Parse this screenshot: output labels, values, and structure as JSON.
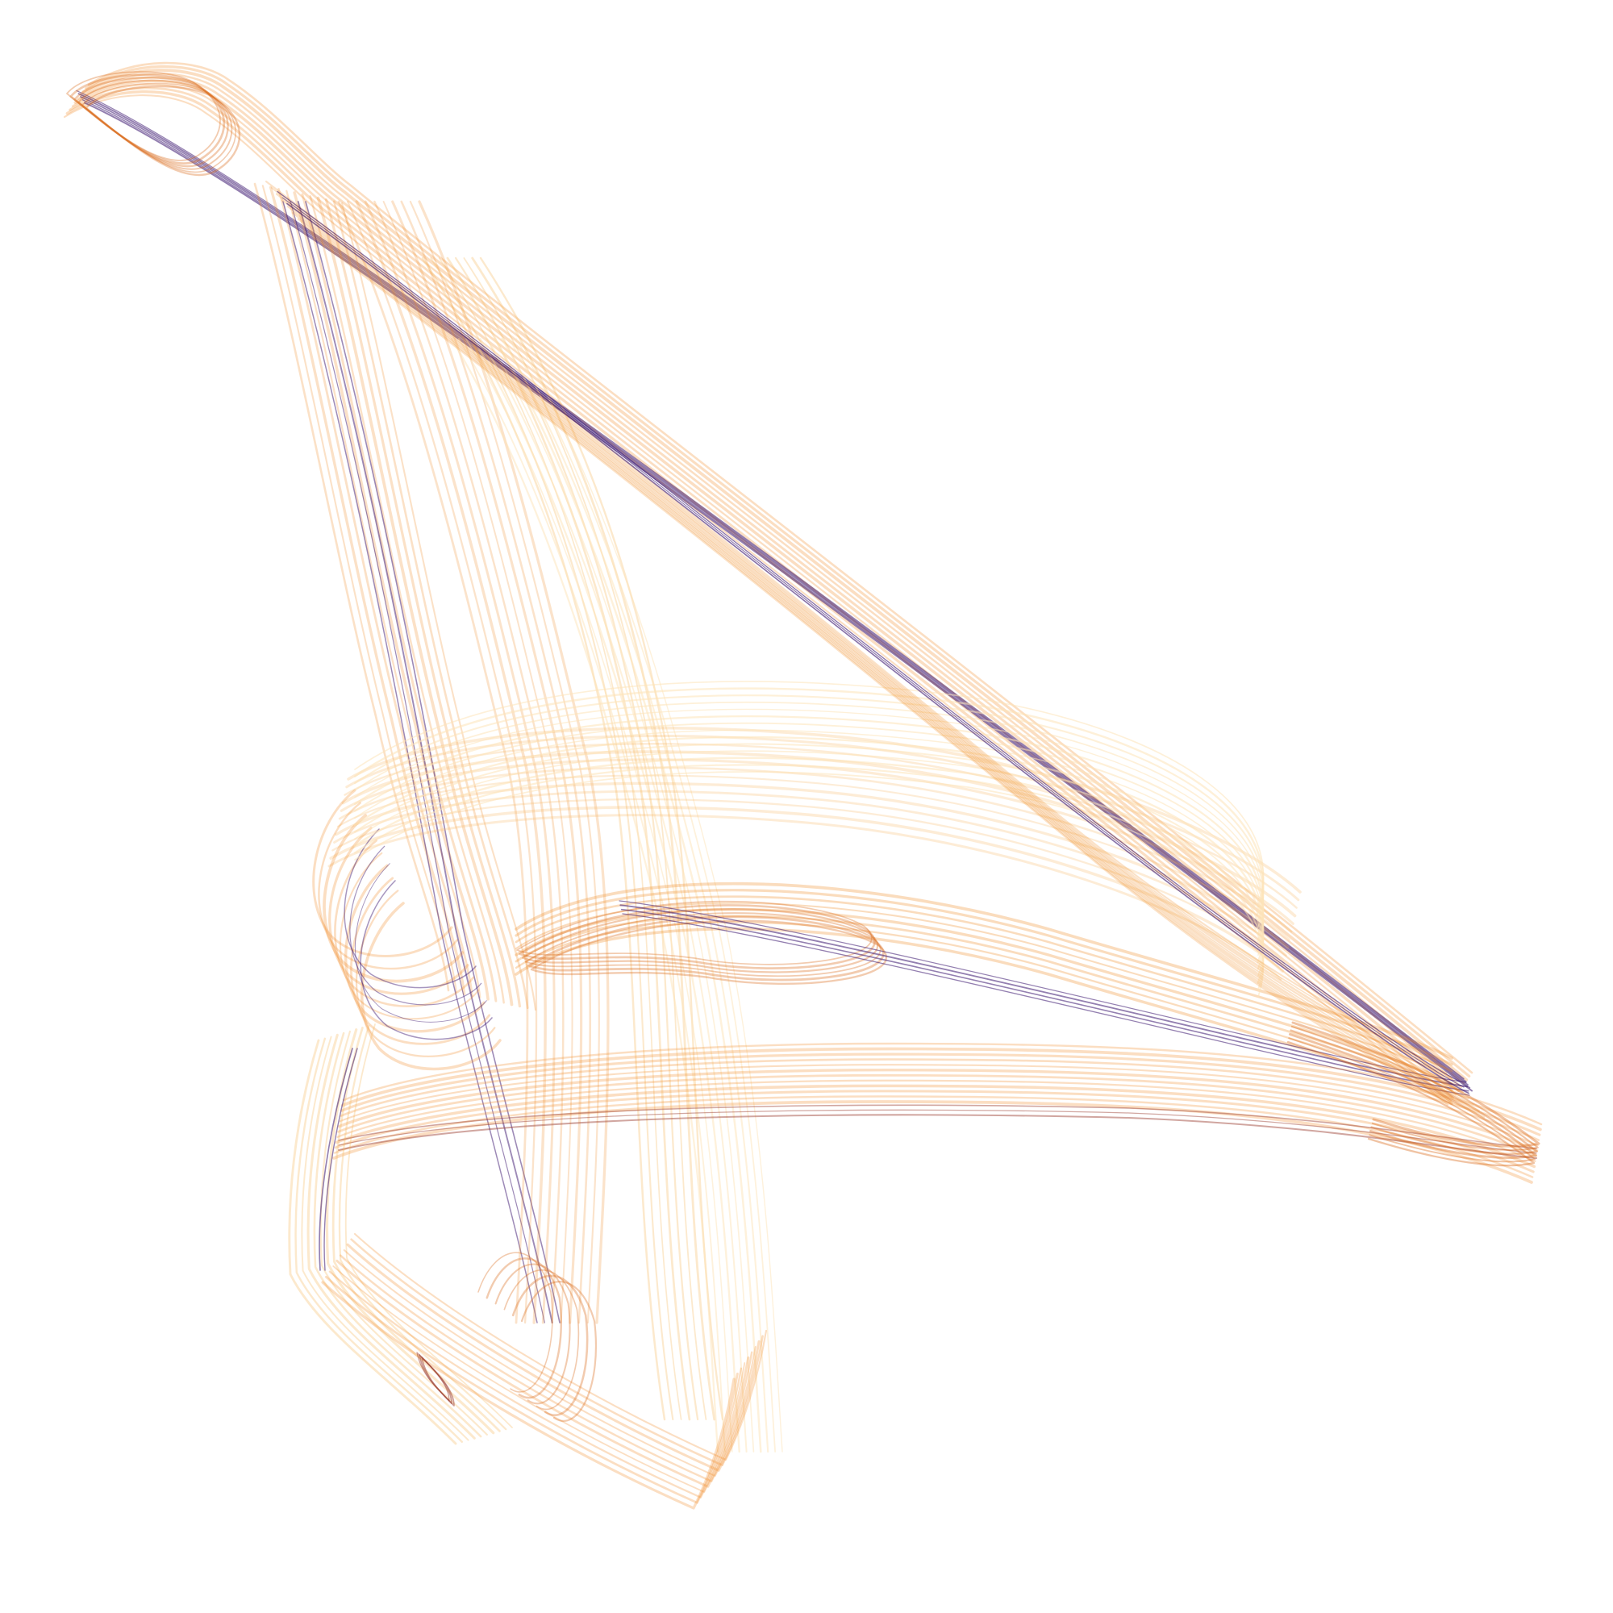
{
  "artwork": {
    "subject": "strange-attractor",
    "background_color": "#ffffff",
    "palette": {
      "faint": "#fde3b8",
      "light": "#f6b55a",
      "mid": "#ef8a25",
      "strong": "#d9691a",
      "deep": "#9a3a2c",
      "dark": "#3b1670"
    }
  }
}
